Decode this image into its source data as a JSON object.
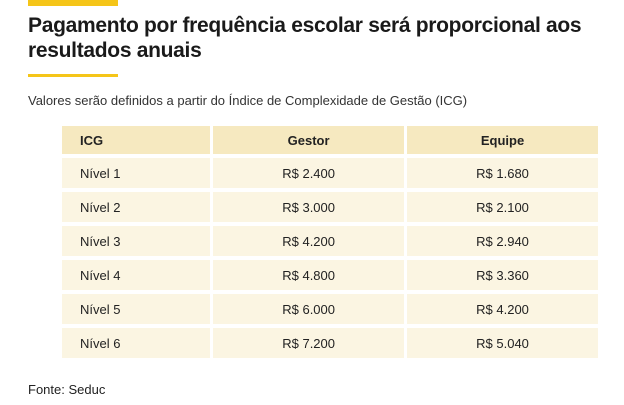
{
  "article": {
    "title": "Pagamento por frequência escolar será proporcional aos resultados anuais",
    "subtitle": "Valores serão definidos a partir do Índice de Complexidade de Gestão (ICG)",
    "source": "Fonte: Seduc"
  },
  "table": {
    "headers": [
      "ICG",
      "Gestor",
      "Equipe"
    ],
    "rows": [
      [
        "Nível 1",
        "R$ 2.400",
        "R$ 1.680"
      ],
      [
        "Nível 2",
        "R$ 3.000",
        "R$ 2.100"
      ],
      [
        "Nível 3",
        "R$ 4.200",
        "R$ 2.940"
      ],
      [
        "Nível 4",
        "R$ 4.800",
        "R$ 3.360"
      ],
      [
        "Nível 5",
        "R$ 6.000",
        "R$ 4.200"
      ],
      [
        "Nível 6",
        "R$ 7.200",
        "R$ 5.040"
      ]
    ]
  },
  "colors": {
    "accent": "#f5c518",
    "header_bg": "#f6e9c0",
    "row_bg": "#fbf5e2"
  }
}
